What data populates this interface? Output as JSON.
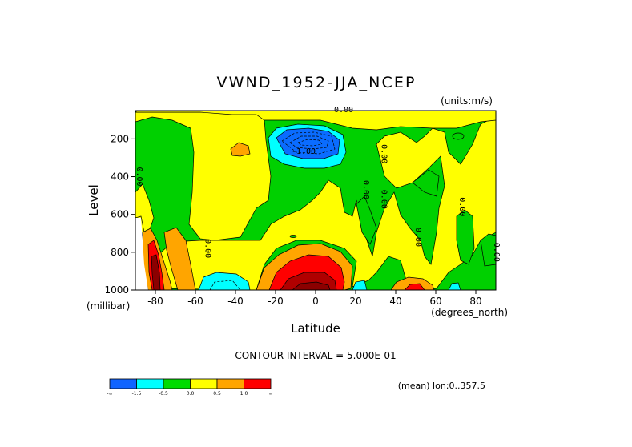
{
  "chart_data": {
    "type": "contour",
    "title": "VWND_1952-JJA_NCEP",
    "units": "(units:m/s)",
    "xlabel": "Latitude",
    "xunit": "(degrees_north)",
    "ylabel": "Level",
    "yunit": "(millibar)",
    "xlim": [
      -90,
      90
    ],
    "ylim": [
      1000,
      50
    ],
    "x_ticks": [
      -80,
      -60,
      -40,
      -20,
      0,
      20,
      40,
      60,
      80
    ],
    "x_tick_labels": [
      "-80",
      "-60",
      "-40",
      "-20",
      "0",
      "20",
      "40",
      "60",
      "80"
    ],
    "y_ticks": [
      200,
      400,
      600,
      800,
      1000
    ],
    "y_tick_labels": [
      "200",
      "400",
      "600",
      "800",
      "1000"
    ],
    "contour_interval_text": "CONTOUR INTERVAL = 5.000E-01",
    "stats_text": "(mean) lon:0..357.5",
    "contour_labels": [
      {
        "text": "0.00",
        "lat": 14,
        "lev": 50
      },
      {
        "text": "-1.00",
        "lat": -6,
        "lev": 280
      },
      {
        "text": "0.00",
        "lat": -91,
        "lev": 400
      },
      {
        "text": "0.00",
        "lat": 33,
        "lev": 520
      },
      {
        "text": "0.00",
        "lat": 24,
        "lev": 470
      },
      {
        "text": "0.00",
        "lat": 33,
        "lev": 280
      },
      {
        "text": "0.00",
        "lat": 72,
        "lev": 560
      },
      {
        "text": "0.00",
        "lat": 50,
        "lev": 720
      },
      {
        "text": "0.00",
        "lat": -55,
        "lev": 780
      },
      {
        "text": "0.00",
        "lat": 90,
        "lev": 800
      }
    ],
    "fill_colors": [
      "#0050ff",
      "#00e8ff",
      "#00d000",
      "#ffff00",
      "#ffa500",
      "#ff0000",
      "#8b0000"
    ],
    "colorbar": {
      "colors": [
        "#1064ff",
        "#00ffff",
        "#00dc00",
        "#ffff00",
        "#ffa500",
        "#ff0000"
      ],
      "labels": [
        "-∞",
        "-1.5",
        "-0.5",
        "0.0",
        "0.5",
        "1.0",
        "∞"
      ]
    }
  }
}
